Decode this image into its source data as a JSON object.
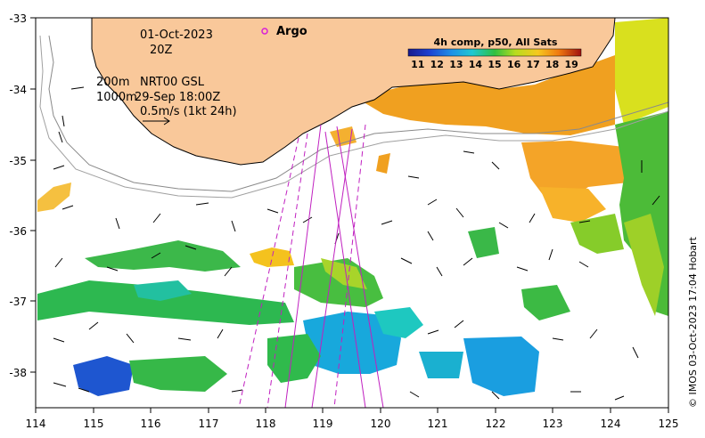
{
  "map": {
    "date_label": "01-Oct-2023",
    "time_label": "20Z",
    "argo_label": "Argo",
    "contour_label_1": "200m",
    "contour_label_2": "1000m",
    "product_label": "NRT00 GSL",
    "product_time": "29-Sep 18:00Z",
    "scale_label": "0.5m/s (1kt 24h)",
    "credit": "© IMOS 03-Oct-2023 17:04 Hobart",
    "x_ticks": [
      "114",
      "115",
      "116",
      "117",
      "118",
      "119",
      "120",
      "121",
      "122",
      "123",
      "124",
      "125"
    ],
    "y_ticks": [
      "-33",
      "-34",
      "-35",
      "-36",
      "-37",
      "-38"
    ],
    "colorbar": {
      "title": "4h comp, p50, All Sats",
      "ticks": [
        "11",
        "12",
        "13",
        "14",
        "15",
        "16",
        "17",
        "18",
        "19"
      ],
      "unit_range": [
        10.5,
        19.5
      ]
    },
    "colors": {
      "land": "#f9c89a",
      "argo": "#d81fd8",
      "track": "#c020c0"
    }
  }
}
